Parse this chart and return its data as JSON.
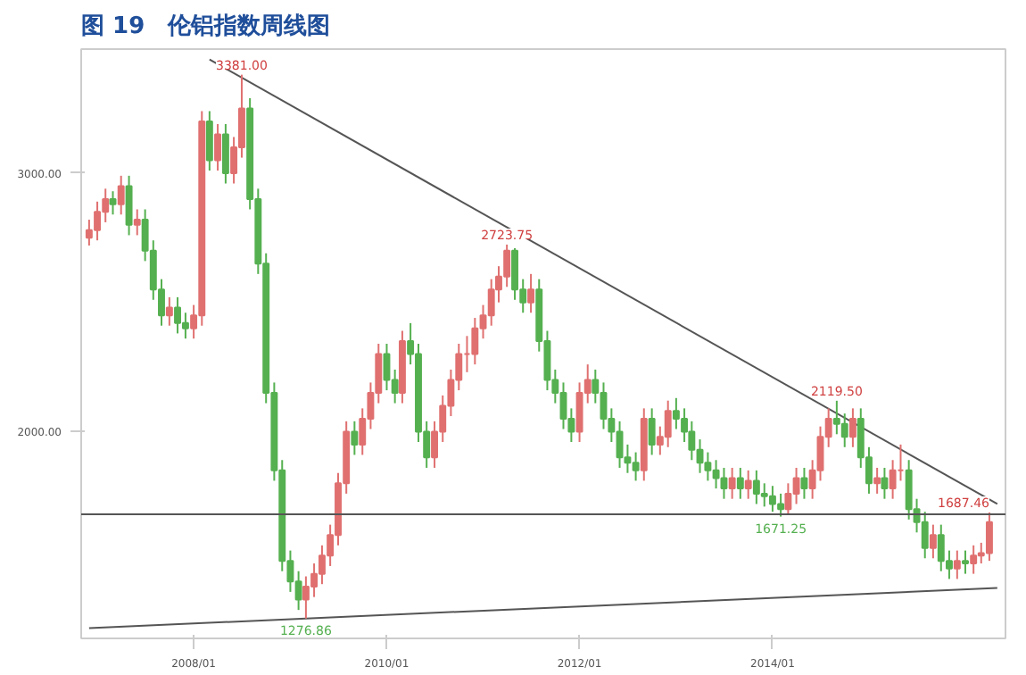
{
  "chart_data": {
    "type": "candlestick",
    "title": "图 19　伦铝指数周线图",
    "x": [
      "2006-12",
      "2007-01",
      "2007-02",
      "2007-03",
      "2007-04",
      "2007-05",
      "2007-06",
      "2007-07",
      "2007-08",
      "2007-09",
      "2007-10",
      "2007-11",
      "2007-12",
      "2008-01",
      "2008-02",
      "2008-03",
      "2008-04",
      "2008-05",
      "2008-06",
      "2008-07",
      "2008-08",
      "2008-09",
      "2008-10",
      "2008-11",
      "2008-12",
      "2009-01",
      "2009-02",
      "2009-03",
      "2009-04",
      "2009-05",
      "2009-06",
      "2009-07",
      "2009-08",
      "2009-09",
      "2009-10",
      "2009-11",
      "2009-12",
      "2010-01",
      "2010-02",
      "2010-03",
      "2010-04",
      "2010-05",
      "2010-06",
      "2010-07",
      "2010-08",
      "2010-09",
      "2010-10",
      "2010-11",
      "2010-12",
      "2011-01",
      "2011-02",
      "2011-03",
      "2011-04",
      "2011-05",
      "2011-06",
      "2011-07",
      "2011-08",
      "2011-09",
      "2011-10",
      "2011-11",
      "2011-12",
      "2012-01",
      "2012-02",
      "2012-03",
      "2012-04",
      "2012-05",
      "2012-06",
      "2012-07",
      "2012-08",
      "2012-09",
      "2012-10",
      "2012-11",
      "2012-12",
      "2013-01",
      "2013-02",
      "2013-03",
      "2013-04",
      "2013-05",
      "2013-06",
      "2013-07",
      "2013-08",
      "2013-09",
      "2013-10",
      "2013-11",
      "2013-12",
      "2014-01",
      "2014-02",
      "2014-03",
      "2014-04",
      "2014-05",
      "2014-06",
      "2014-07",
      "2014-08",
      "2014-09",
      "2014-10",
      "2014-11",
      "2014-12",
      "2015-01",
      "2015-02",
      "2015-03",
      "2015-04",
      "2015-05",
      "2015-06",
      "2015-07",
      "2015-08",
      "2015-09",
      "2015-10",
      "2015-11",
      "2015-12",
      "2016-01",
      "2016-02",
      "2016-03",
      "2016-04"
    ],
    "ohlc": [
      [
        2750,
        2820,
        2720,
        2780
      ],
      [
        2780,
        2890,
        2740,
        2850
      ],
      [
        2850,
        2940,
        2810,
        2900
      ],
      [
        2900,
        2930,
        2840,
        2880
      ],
      [
        2880,
        2990,
        2840,
        2950
      ],
      [
        2950,
        2990,
        2760,
        2800
      ],
      [
        2800,
        2860,
        2760,
        2820
      ],
      [
        2820,
        2860,
        2660,
        2700
      ],
      [
        2700,
        2740,
        2510,
        2550
      ],
      [
        2550,
        2590,
        2410,
        2450
      ],
      [
        2450,
        2520,
        2410,
        2480
      ],
      [
        2480,
        2520,
        2380,
        2420
      ],
      [
        2420,
        2460,
        2360,
        2400
      ],
      [
        2400,
        2490,
        2360,
        2450
      ],
      [
        2450,
        3240,
        2410,
        3200
      ],
      [
        3200,
        3240,
        3010,
        3050
      ],
      [
        3050,
        3190,
        3010,
        3150
      ],
      [
        3150,
        3190,
        2960,
        3000
      ],
      [
        3000,
        3140,
        2960,
        3100
      ],
      [
        3100,
        3381,
        3060,
        3250
      ],
      [
        3250,
        3290,
        2860,
        2900
      ],
      [
        2900,
        2940,
        2610,
        2650
      ],
      [
        2650,
        2690,
        2110,
        2150
      ],
      [
        2150,
        2190,
        1810,
        1850
      ],
      [
        1850,
        1890,
        1460,
        1500
      ],
      [
        1500,
        1540,
        1380,
        1420
      ],
      [
        1420,
        1460,
        1310,
        1350
      ],
      [
        1350,
        1440,
        1276.86,
        1400
      ],
      [
        1400,
        1490,
        1360,
        1450
      ],
      [
        1450,
        1560,
        1410,
        1520
      ],
      [
        1520,
        1640,
        1480,
        1600
      ],
      [
        1600,
        1840,
        1560,
        1800
      ],
      [
        1800,
        2040,
        1760,
        2000
      ],
      [
        2000,
        2040,
        1910,
        1950
      ],
      [
        1950,
        2090,
        1910,
        2050
      ],
      [
        2050,
        2190,
        2010,
        2150
      ],
      [
        2150,
        2340,
        2110,
        2300
      ],
      [
        2300,
        2340,
        2160,
        2200
      ],
      [
        2200,
        2240,
        2110,
        2150
      ],
      [
        2150,
        2390,
        2110,
        2350
      ],
      [
        2350,
        2420,
        2260,
        2300
      ],
      [
        2300,
        2340,
        1960,
        2000
      ],
      [
        2000,
        2040,
        1860,
        1900
      ],
      [
        1900,
        2040,
        1860,
        2000
      ],
      [
        2000,
        2140,
        1960,
        2100
      ],
      [
        2100,
        2240,
        2060,
        2200
      ],
      [
        2200,
        2340,
        2160,
        2300
      ],
      [
        2300,
        2370,
        2230,
        2300
      ],
      [
        2300,
        2440,
        2260,
        2400
      ],
      [
        2400,
        2490,
        2360,
        2450
      ],
      [
        2450,
        2590,
        2410,
        2550
      ],
      [
        2550,
        2640,
        2500,
        2600
      ],
      [
        2600,
        2723.75,
        2560,
        2700
      ],
      [
        2700,
        2710,
        2510,
        2550
      ],
      [
        2550,
        2590,
        2460,
        2500
      ],
      [
        2500,
        2610,
        2460,
        2550
      ],
      [
        2550,
        2590,
        2310,
        2350
      ],
      [
        2350,
        2390,
        2160,
        2200
      ],
      [
        2200,
        2240,
        2110,
        2150
      ],
      [
        2150,
        2190,
        2010,
        2050
      ],
      [
        2050,
        2090,
        1960,
        2000
      ],
      [
        2000,
        2190,
        1960,
        2150
      ],
      [
        2150,
        2260,
        2110,
        2200
      ],
      [
        2200,
        2240,
        2110,
        2150
      ],
      [
        2150,
        2190,
        2010,
        2050
      ],
      [
        2050,
        2090,
        1960,
        2000
      ],
      [
        2000,
        2040,
        1860,
        1900
      ],
      [
        1900,
        1950,
        1840,
        1880
      ],
      [
        1880,
        1920,
        1810,
        1850
      ],
      [
        1850,
        2090,
        1810,
        2050
      ],
      [
        2050,
        2090,
        1910,
        1950
      ],
      [
        1950,
        2020,
        1910,
        1980
      ],
      [
        1980,
        2120,
        1940,
        2080
      ],
      [
        2080,
        2130,
        2010,
        2050
      ],
      [
        2050,
        2090,
        1960,
        2000
      ],
      [
        2000,
        2040,
        1890,
        1930
      ],
      [
        1930,
        1970,
        1840,
        1880
      ],
      [
        1880,
        1920,
        1810,
        1850
      ],
      [
        1850,
        1890,
        1780,
        1820
      ],
      [
        1820,
        1860,
        1740,
        1780
      ],
      [
        1780,
        1860,
        1740,
        1820
      ],
      [
        1820,
        1860,
        1740,
        1780
      ],
      [
        1780,
        1850,
        1740,
        1810
      ],
      [
        1810,
        1850,
        1720,
        1760
      ],
      [
        1760,
        1800,
        1710,
        1750
      ],
      [
        1750,
        1790,
        1690,
        1720
      ],
      [
        1720,
        1760,
        1671.25,
        1700
      ],
      [
        1700,
        1800,
        1680,
        1760
      ],
      [
        1760,
        1860,
        1720,
        1820
      ],
      [
        1820,
        1860,
        1740,
        1780
      ],
      [
        1780,
        1890,
        1740,
        1850
      ],
      [
        1850,
        2020,
        1810,
        1980
      ],
      [
        1980,
        2090,
        1940,
        2050
      ],
      [
        2050,
        2119.5,
        1990,
        2030
      ],
      [
        2030,
        2070,
        1940,
        1980
      ],
      [
        1980,
        2090,
        1940,
        2050
      ],
      [
        2050,
        2090,
        1860,
        1900
      ],
      [
        1900,
        1940,
        1760,
        1800
      ],
      [
        1800,
        1860,
        1760,
        1820
      ],
      [
        1820,
        1860,
        1740,
        1780
      ],
      [
        1780,
        1890,
        1740,
        1850
      ],
      [
        1850,
        1950,
        1810,
        1850
      ],
      [
        1850,
        1890,
        1660,
        1700
      ],
      [
        1700,
        1740,
        1610,
        1650
      ],
      [
        1650,
        1690,
        1510,
        1550
      ],
      [
        1550,
        1640,
        1510,
        1600
      ],
      [
        1600,
        1640,
        1460,
        1500
      ],
      [
        1500,
        1540,
        1430,
        1470
      ],
      [
        1470,
        1540,
        1430,
        1500
      ],
      [
        1500,
        1540,
        1450,
        1490
      ],
      [
        1490,
        1560,
        1450,
        1520
      ],
      [
        1520,
        1570,
        1490,
        1530
      ],
      [
        1530,
        1687.46,
        1500,
        1650
      ]
    ],
    "series": [
      {
        "type": "line",
        "color": "#555555",
        "x": [
          "2008-03",
          "2016-05"
        ],
        "values": [
          3440,
          1720
        ]
      },
      {
        "type": "line",
        "color": "#555555",
        "x": [
          "2006-12",
          "2016-05"
        ],
        "values": [
          1240,
          1395
        ]
      }
    ],
    "ref_lines": [
      {
        "axis": "y",
        "value": 1680,
        "color": "#555555"
      }
    ],
    "annotations": [
      {
        "text": "3381.00",
        "x": "2008-07",
        "y": 3381
      },
      {
        "text": "1276.86",
        "x": "2009-03",
        "y": 1276.86
      },
      {
        "text": "2723.75",
        "x": "2011-04",
        "y": 2723.75
      },
      {
        "text": "2119.50",
        "x": "2014-09",
        "y": 2119.5
      },
      {
        "text": "1671.25",
        "x": "2014-02",
        "y": 1671.25
      },
      {
        "text": "1687.46",
        "x": "2016-04",
        "y": 1687.46
      }
    ],
    "xlim": [
      "2006-11",
      "2016-06"
    ],
    "xticks": [
      {
        "value": "2008-01",
        "label": "2008/01"
      },
      {
        "value": "2010-01",
        "label": "2010/01"
      },
      {
        "value": "2012-01",
        "label": "2012/01"
      },
      {
        "value": "2014-01",
        "label": "2014/01"
      }
    ],
    "ylim": [
      1200,
      3480
    ],
    "yticks": [
      {
        "value": 2000,
        "label": "2000.00"
      },
      {
        "value": 3000,
        "label": "3000.00"
      }
    ],
    "grid": false
  }
}
